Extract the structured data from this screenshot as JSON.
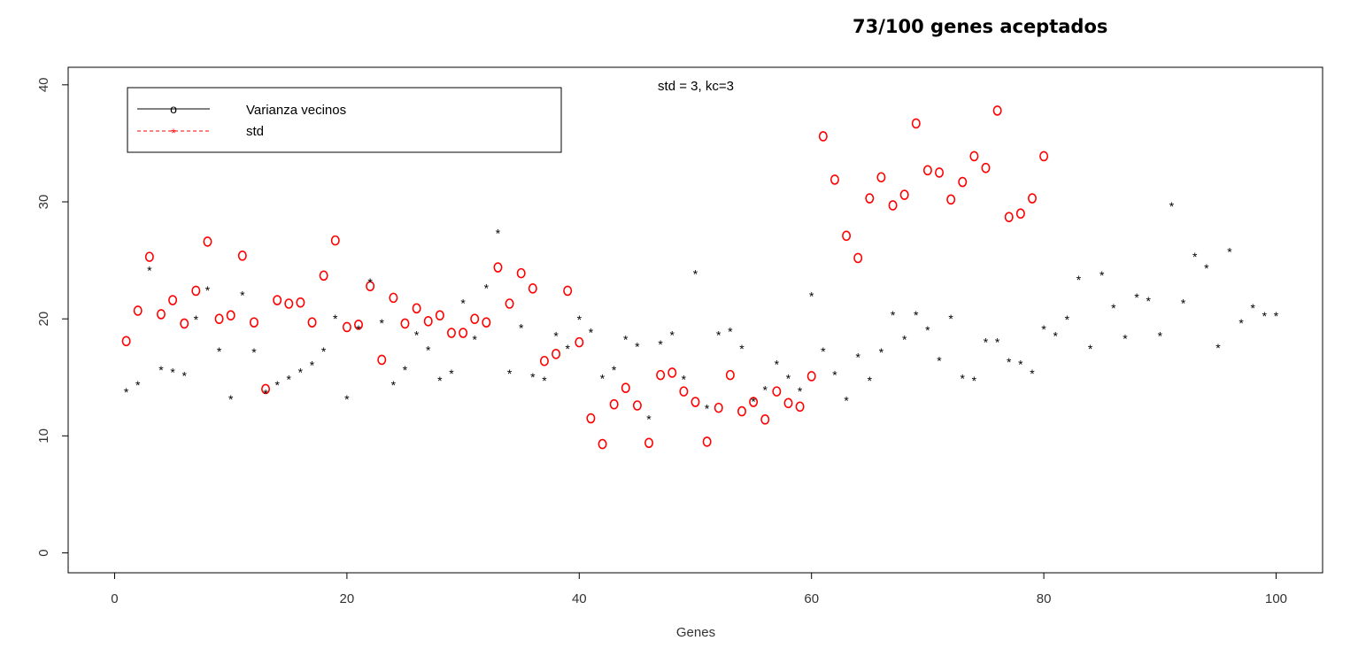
{
  "page_title": "73/100 genes aceptados",
  "chart_data": {
    "type": "scatter",
    "subtitle": "std = 3, kc=3",
    "xlabel": "Genes",
    "ylabel": "",
    "xlim": [
      -4,
      104
    ],
    "ylim": [
      -1.7,
      41.5
    ],
    "x_ticks": [
      0,
      20,
      40,
      60,
      80,
      100
    ],
    "y_ticks": [
      0,
      10,
      20,
      30,
      40
    ],
    "legend_position": "top-left",
    "grid": false,
    "colors": {
      "varianza": "#ff0000",
      "std": "#000000"
    },
    "series": [
      {
        "name": "Varianza vecinos",
        "marker": "o",
        "x": [
          1,
          2,
          3,
          4,
          5,
          6,
          7,
          8,
          9,
          10,
          11,
          12,
          13,
          14,
          15,
          16,
          17,
          18,
          19,
          20,
          21,
          22,
          23,
          24,
          25,
          26,
          27,
          28,
          29,
          30,
          31,
          32,
          33,
          34,
          35,
          36,
          37,
          38,
          39,
          40,
          41,
          42,
          43,
          44,
          45,
          46,
          47,
          48,
          49,
          50,
          51,
          52,
          53,
          54,
          55,
          56,
          57,
          58,
          59,
          60,
          61,
          62,
          63,
          64,
          65,
          66,
          67,
          68,
          69,
          70,
          71,
          72,
          73,
          74,
          75,
          76,
          77,
          78,
          79,
          80
        ],
        "y": [
          18.1,
          20.7,
          25.3,
          20.4,
          21.6,
          19.6,
          22.4,
          26.6,
          20.0,
          20.3,
          25.4,
          19.7,
          14.0,
          21.6,
          21.3,
          21.4,
          19.7,
          23.7,
          26.7,
          19.3,
          19.5,
          22.8,
          16.5,
          21.8,
          19.6,
          20.9,
          19.8,
          20.3,
          18.8,
          18.8,
          20.0,
          19.7,
          24.4,
          21.3,
          23.9,
          22.6,
          16.4,
          17.0,
          22.4,
          18.0,
          11.5,
          9.3,
          12.7,
          14.1,
          12.6,
          9.4,
          15.2,
          15.4,
          13.8,
          12.9,
          9.5,
          12.4,
          15.2,
          12.1,
          12.9,
          11.4,
          13.8,
          12.8,
          12.5,
          15.1,
          35.6,
          31.9,
          27.1,
          25.2,
          30.3,
          32.1,
          29.7,
          30.6,
          36.7,
          32.7,
          32.5,
          30.2,
          31.7,
          33.9,
          32.9,
          37.8,
          28.7,
          29.0,
          30.3,
          33.9
        ]
      },
      {
        "name": "std",
        "marker": "*",
        "x": [
          1,
          2,
          3,
          4,
          5,
          6,
          7,
          8,
          9,
          10,
          11,
          12,
          13,
          14,
          15,
          16,
          17,
          18,
          19,
          20,
          21,
          22,
          23,
          24,
          25,
          26,
          27,
          28,
          29,
          30,
          31,
          32,
          33,
          34,
          35,
          36,
          37,
          38,
          39,
          40,
          41,
          42,
          43,
          44,
          45,
          46,
          47,
          48,
          49,
          50,
          51,
          52,
          53,
          54,
          55,
          56,
          57,
          58,
          59,
          60,
          61,
          62,
          63,
          64,
          65,
          66,
          67,
          68,
          69,
          70,
          71,
          72,
          73,
          74,
          75,
          76,
          77,
          78,
          79,
          80,
          81,
          82,
          83,
          84,
          85,
          86,
          87,
          88,
          89,
          90,
          91,
          92,
          93,
          94,
          95,
          96,
          97,
          98,
          99,
          100
        ],
        "y": [
          13.8,
          14.4,
          24.2,
          15.7,
          15.5,
          15.2,
          20.0,
          22.5,
          17.3,
          13.2,
          22.1,
          17.2,
          13.7,
          14.4,
          14.9,
          15.5,
          16.1,
          17.3,
          20.1,
          13.2,
          19.2,
          23.2,
          19.7,
          14.4,
          15.7,
          18.7,
          17.4,
          14.8,
          15.4,
          21.4,
          18.3,
          22.7,
          27.4,
          15.4,
          19.3,
          15.1,
          14.8,
          18.6,
          17.5,
          20.0,
          18.9,
          15.0,
          15.7,
          18.3,
          17.7,
          11.5,
          17.9,
          18.7,
          14.9,
          23.9,
          12.4,
          18.7,
          19.0,
          17.5,
          13.0,
          14.0,
          16.2,
          15.0,
          13.9,
          22.0,
          17.3,
          15.3,
          13.1,
          16.8,
          14.8,
          17.2,
          20.4,
          18.3,
          20.4,
          19.1,
          16.5,
          20.1,
          15.0,
          14.8,
          18.1,
          18.1,
          16.4,
          16.2,
          15.4,
          19.2,
          18.6,
          20.0,
          23.4,
          17.5,
          23.8,
          21.0,
          18.4,
          21.9,
          21.6,
          18.6,
          29.7,
          21.4,
          25.4,
          24.4,
          17.6,
          25.8,
          19.7,
          21.0,
          20.3,
          20.3
        ]
      }
    ],
    "legend": [
      {
        "label": "Varianza vecinos",
        "marker": "o",
        "line": "solid",
        "color": "#000000"
      },
      {
        "label": "std",
        "marker": "*",
        "line": "dashed",
        "color": "#ff0000"
      }
    ]
  }
}
